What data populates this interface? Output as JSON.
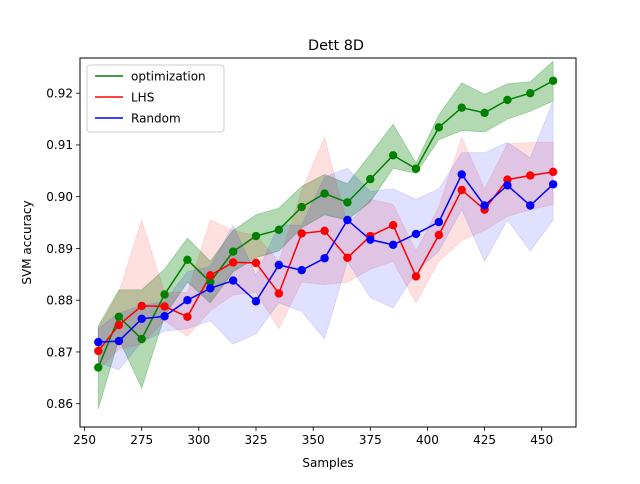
{
  "chart_data": {
    "type": "line",
    "title": "Dett 8D",
    "xlabel": "Samples",
    "ylabel": "SVM accuracy",
    "xlim": [
      248,
      465
    ],
    "ylim": [
      0.8555,
      0.9268
    ],
    "xticks": [
      250,
      275,
      300,
      325,
      350,
      375,
      400,
      425,
      450
    ],
    "yticks": [
      0.86,
      0.87,
      0.88,
      0.89,
      0.9,
      0.91,
      0.92
    ],
    "xtick_labels": [
      "250",
      "275",
      "300",
      "325",
      "350",
      "375",
      "400",
      "425",
      "450"
    ],
    "ytick_labels": [
      "0.86",
      "0.87",
      "0.88",
      "0.89",
      "0.90",
      "0.91",
      "0.92"
    ],
    "grid": false,
    "legend_position": "top-left",
    "x": [
      256,
      265,
      275,
      285,
      295,
      305,
      315,
      325,
      335,
      345,
      355,
      365,
      375,
      385,
      395,
      405,
      415,
      425,
      435,
      445,
      455
    ],
    "series": [
      {
        "name": "optimization",
        "color": "#008000",
        "values": [
          0.867,
          0.8768,
          0.8725,
          0.8811,
          0.8878,
          0.8835,
          0.8894,
          0.8924,
          0.8936,
          0.898,
          0.9006,
          0.8989,
          0.9034,
          0.908,
          0.9054,
          0.9134,
          0.9172,
          0.9162,
          0.9187,
          0.92,
          0.9224
        ],
        "lower": [
          0.859,
          0.8725,
          0.863,
          0.877,
          0.8835,
          0.8795,
          0.8855,
          0.8882,
          0.8895,
          0.894,
          0.8965,
          0.8955,
          0.899,
          0.9055,
          0.9045,
          0.911,
          0.9128,
          0.9125,
          0.915,
          0.9165,
          0.9185
        ],
        "upper": [
          0.875,
          0.882,
          0.882,
          0.886,
          0.892,
          0.8875,
          0.8935,
          0.8965,
          0.8978,
          0.902,
          0.9043,
          0.9025,
          0.9082,
          0.914,
          0.9065,
          0.9158,
          0.922,
          0.9198,
          0.9218,
          0.9222,
          0.9262
        ]
      },
      {
        "name": "LHS",
        "color": "#ff0000",
        "values": [
          0.8702,
          0.8752,
          0.8789,
          0.8788,
          0.8768,
          0.8848,
          0.8873,
          0.8872,
          0.8813,
          0.8929,
          0.8934,
          0.8882,
          0.8924,
          0.8945,
          0.8846,
          0.8926,
          0.9013,
          0.8975,
          0.9033,
          0.9041,
          0.9048
        ],
        "lower": [
          0.8665,
          0.8705,
          0.8715,
          0.876,
          0.873,
          0.878,
          0.881,
          0.8815,
          0.8745,
          0.8835,
          0.883,
          0.8835,
          0.886,
          0.8875,
          0.8795,
          0.8875,
          0.8915,
          0.8935,
          0.8962,
          0.8975,
          0.8985
        ],
        "upper": [
          0.8745,
          0.8815,
          0.8955,
          0.8815,
          0.8815,
          0.8955,
          0.8935,
          0.8925,
          0.8875,
          0.9012,
          0.9115,
          0.8945,
          0.8995,
          0.8985,
          0.8895,
          0.898,
          0.9115,
          0.9015,
          0.9102,
          0.9105,
          0.9105
        ]
      },
      {
        "name": "Random",
        "color": "#0000ff",
        "values": [
          0.8719,
          0.8721,
          0.8764,
          0.8769,
          0.88,
          0.8823,
          0.8838,
          0.8798,
          0.8868,
          0.8858,
          0.8881,
          0.8955,
          0.8917,
          0.8907,
          0.8928,
          0.8951,
          0.9043,
          0.8983,
          0.9022,
          0.8983,
          0.9024
        ],
        "lower": [
          0.868,
          0.8665,
          0.872,
          0.874,
          0.8745,
          0.876,
          0.8715,
          0.8735,
          0.8795,
          0.8778,
          0.8725,
          0.8875,
          0.8805,
          0.8785,
          0.8855,
          0.8895,
          0.8975,
          0.8875,
          0.8955,
          0.8895,
          0.8955
        ],
        "upper": [
          0.8745,
          0.8775,
          0.879,
          0.8798,
          0.8855,
          0.8865,
          0.8945,
          0.8848,
          0.8945,
          0.8945,
          0.9038,
          0.9055,
          0.901,
          0.9015,
          0.8995,
          0.9015,
          0.9085,
          0.9085,
          0.9105,
          0.9075,
          0.9185
        ]
      }
    ]
  }
}
